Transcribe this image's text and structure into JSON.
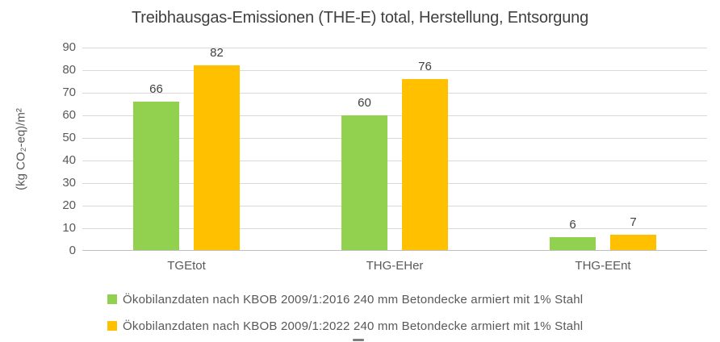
{
  "chart_data": {
    "type": "bar",
    "title": "Treibhausgas-Emissionen (THE-E) total, Herstellung, Entsorgung",
    "ylabel": "(kg CO₂-eq)/m²",
    "xlabel": "",
    "categories": [
      "TGEtot",
      "THG-EHer",
      "THG-EEnt"
    ],
    "series": [
      {
        "name": "Ökobilanzdaten nach KBOB 2009/1:2016 240 mm Betondecke armiert mit 1% Stahl",
        "color": "#92D050",
        "values": [
          66,
          60,
          6
        ]
      },
      {
        "name": "Ökobilanzdaten nach KBOB 2009/1:2022 240 mm Betondecke armiert mit 1% Stahl",
        "color": "#FFC000",
        "values": [
          82,
          76,
          7
        ]
      }
    ],
    "ylim": [
      0,
      90
    ],
    "ytick_step": 10,
    "grid": true,
    "data_labels": true,
    "legend_position": "bottom"
  },
  "palette": {
    "title_text": "#404040",
    "axis_text": "#595959",
    "data_label_text": "#404040",
    "gridline": "#D9D9D9",
    "axis_line": "#BFBFBF",
    "background": "#FFFFFF"
  }
}
